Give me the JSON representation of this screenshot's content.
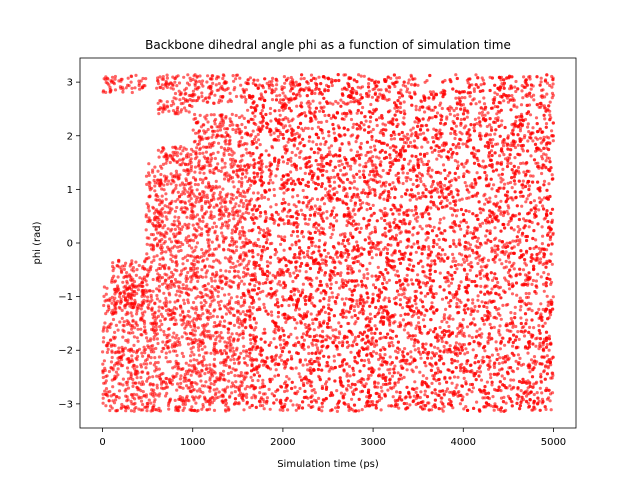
{
  "chart_data": {
    "type": "scatter",
    "title": "Backbone dihedral angle phi as a function of simulation time",
    "xlabel": "Simulation time (ps)",
    "ylabel": "phi (rad)",
    "xlim": [
      -250,
      5250
    ],
    "ylim": [
      -3.45,
      3.45
    ],
    "xticks": [
      0,
      1000,
      2000,
      3000,
      4000,
      5000
    ],
    "xtick_labels": [
      "0",
      "1000",
      "2000",
      "3000",
      "4000",
      "5000"
    ],
    "yticks": [
      -3,
      -2,
      -1,
      0,
      1,
      2,
      3
    ],
    "ytick_labels": [
      "−3",
      "−2",
      "−1",
      "0",
      "1",
      "2",
      "3"
    ],
    "grid": false,
    "legend": false,
    "marker_color": "#ff0000",
    "marker_alpha": 0.6,
    "series": [
      {
        "x_range": [
          0,
          5000
        ],
        "segments": [
          {
            "x": [
              0,
              480
            ],
            "y": [
              -3.14,
              -0.8
            ]
          },
          {
            "x": [
              0,
              480
            ],
            "y": [
              2.8,
              3.14
            ]
          },
          {
            "x": [
              100,
              480
            ],
            "y": [
              -1.2,
              -0.3
            ]
          },
          {
            "x": [
              480,
              600
            ],
            "y": [
              -3.14,
              1.5
            ]
          },
          {
            "x": [
              600,
              1000
            ],
            "y": [
              -3.14,
              1.8
            ]
          },
          {
            "x": [
              600,
              1000
            ],
            "y": [
              2.4,
              3.14
            ]
          },
          {
            "x": [
              1000,
              1600
            ],
            "y": [
              -3.14,
              2.4
            ]
          },
          {
            "x": [
              1000,
              1600
            ],
            "y": [
              2.6,
              3.14
            ]
          },
          {
            "x": [
              1600,
              5000
            ],
            "y": [
              -3.14,
              3.14
            ]
          }
        ]
      }
    ]
  }
}
